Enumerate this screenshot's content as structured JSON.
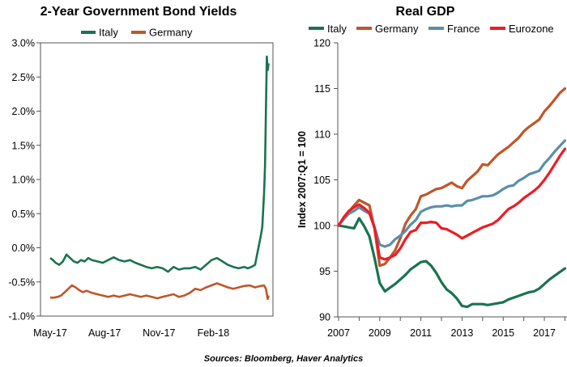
{
  "source": "Sources: Bloomberg, Haver Analytics",
  "chart_data": [
    {
      "type": "line",
      "title": "2-Year Government Bond Yields",
      "xlabel": "",
      "ylabel": "",
      "ylim": [
        -1.0,
        3.0
      ],
      "yticks": [
        "3.0%",
        "2.5%",
        "2.0%",
        "1.5%",
        "1.0%",
        "0.5%",
        "0.0%",
        "-0.5%",
        "-1.0%"
      ],
      "ytick_values": [
        3.0,
        2.5,
        2.0,
        1.5,
        1.0,
        0.5,
        0.0,
        -0.5,
        -1.0
      ],
      "xticks": [
        "May-17",
        "Aug-17",
        "Nov-17",
        "Feb-18"
      ],
      "xtick_positions": [
        0,
        3,
        6,
        9
      ],
      "xlim": [
        0,
        12.2
      ],
      "legend_position": "top-center",
      "series": [
        {
          "name": "Italy",
          "color": "#1a7350",
          "x": [
            0,
            0.15,
            0.3,
            0.5,
            0.7,
            0.9,
            1.1,
            1.3,
            1.5,
            1.7,
            1.9,
            2.1,
            2.3,
            2.6,
            2.9,
            3.2,
            3.5,
            3.8,
            4.1,
            4.4,
            4.7,
            5.0,
            5.3,
            5.6,
            5.9,
            6.2,
            6.5,
            6.8,
            7.1,
            7.4,
            7.7,
            8.0,
            8.3,
            8.6,
            8.9,
            9.2,
            9.5,
            9.8,
            10.1,
            10.4,
            10.7,
            10.9,
            11.1,
            11.3,
            11.45,
            11.6,
            11.7,
            11.8,
            11.85,
            11.9,
            11.95,
            12.0,
            12.05
          ],
          "values": [
            -0.15,
            -0.18,
            -0.22,
            -0.25,
            -0.2,
            -0.1,
            -0.15,
            -0.2,
            -0.22,
            -0.18,
            -0.2,
            -0.15,
            -0.18,
            -0.2,
            -0.22,
            -0.18,
            -0.14,
            -0.18,
            -0.2,
            -0.18,
            -0.22,
            -0.25,
            -0.28,
            -0.3,
            -0.28,
            -0.3,
            -0.35,
            -0.28,
            -0.32,
            -0.3,
            -0.3,
            -0.28,
            -0.32,
            -0.25,
            -0.18,
            -0.15,
            -0.2,
            -0.25,
            -0.28,
            -0.3,
            -0.28,
            -0.3,
            -0.28,
            -0.25,
            -0.05,
            0.15,
            0.3,
            0.8,
            1.2,
            2.0,
            2.8,
            2.6,
            2.7
          ]
        },
        {
          "name": "Germany",
          "color": "#c0562a",
          "x": [
            0,
            0.2,
            0.4,
            0.6,
            0.8,
            1.0,
            1.2,
            1.4,
            1.6,
            1.8,
            2.0,
            2.3,
            2.6,
            2.9,
            3.2,
            3.5,
            3.8,
            4.1,
            4.4,
            4.7,
            5.0,
            5.3,
            5.6,
            5.9,
            6.2,
            6.5,
            6.8,
            7.1,
            7.4,
            7.7,
            8.0,
            8.3,
            8.6,
            8.9,
            9.2,
            9.5,
            9.8,
            10.1,
            10.4,
            10.7,
            11.0,
            11.3,
            11.6,
            11.8,
            11.9,
            12.0,
            12.05
          ],
          "values": [
            -0.73,
            -0.73,
            -0.72,
            -0.7,
            -0.65,
            -0.6,
            -0.55,
            -0.58,
            -0.62,
            -0.65,
            -0.63,
            -0.66,
            -0.68,
            -0.7,
            -0.72,
            -0.7,
            -0.72,
            -0.7,
            -0.68,
            -0.7,
            -0.72,
            -0.7,
            -0.72,
            -0.74,
            -0.72,
            -0.7,
            -0.68,
            -0.72,
            -0.7,
            -0.66,
            -0.6,
            -0.62,
            -0.58,
            -0.55,
            -0.52,
            -0.55,
            -0.58,
            -0.6,
            -0.58,
            -0.56,
            -0.55,
            -0.58,
            -0.56,
            -0.55,
            -0.6,
            -0.75,
            -0.7
          ]
        }
      ]
    },
    {
      "type": "line",
      "title": "Real GDP",
      "xlabel": "",
      "ylabel": "Index 2007:Q1 = 100",
      "ylim": [
        90,
        120
      ],
      "xlim": [
        2007,
        2018.1
      ],
      "yticks": [
        "120",
        "115",
        "110",
        "105",
        "100",
        "95",
        "90"
      ],
      "ytick_values": [
        120,
        115,
        110,
        105,
        100,
        95,
        90
      ],
      "xticks": [
        "2007",
        "2009",
        "2011",
        "2013",
        "2015",
        "2017"
      ],
      "xtick_values": [
        2007,
        2009,
        2011,
        2013,
        2015,
        2017
      ],
      "legend_position": "top",
      "series": [
        {
          "name": "Italy",
          "color": "#1a7350",
          "x": [
            2007.0,
            2007.25,
            2007.5,
            2007.75,
            2008.0,
            2008.25,
            2008.5,
            2008.75,
            2009.0,
            2009.25,
            2009.5,
            2009.75,
            2010.0,
            2010.25,
            2010.5,
            2010.75,
            2011.0,
            2011.25,
            2011.5,
            2011.75,
            2012.0,
            2012.25,
            2012.5,
            2012.75,
            2013.0,
            2013.25,
            2013.5,
            2013.75,
            2014.0,
            2014.25,
            2014.5,
            2014.75,
            2015.0,
            2015.25,
            2015.5,
            2015.75,
            2016.0,
            2016.25,
            2016.5,
            2016.75,
            2017.0,
            2017.25,
            2017.5,
            2017.75,
            2018.0
          ],
          "values": [
            100.0,
            99.9,
            99.8,
            99.7,
            100.8,
            99.9,
            98.8,
            96.4,
            93.7,
            92.8,
            93.2,
            93.6,
            94.1,
            94.6,
            95.2,
            95.6,
            96.0,
            96.1,
            95.6,
            94.8,
            93.8,
            93.0,
            92.6,
            92.0,
            91.2,
            91.1,
            91.4,
            91.4,
            91.4,
            91.3,
            91.4,
            91.5,
            91.6,
            91.9,
            92.1,
            92.3,
            92.5,
            92.7,
            92.8,
            93.1,
            93.6,
            94.1,
            94.5,
            94.9,
            95.3
          ]
        },
        {
          "name": "Germany",
          "color": "#c0562a",
          "x": [
            2007.0,
            2007.25,
            2007.5,
            2007.75,
            2008.0,
            2008.25,
            2008.5,
            2008.75,
            2009.0,
            2009.25,
            2009.5,
            2009.75,
            2010.0,
            2010.25,
            2010.5,
            2010.75,
            2011.0,
            2011.25,
            2011.5,
            2011.75,
            2012.0,
            2012.25,
            2012.5,
            2012.75,
            2013.0,
            2013.25,
            2013.5,
            2013.75,
            2014.0,
            2014.25,
            2014.5,
            2014.75,
            2015.0,
            2015.25,
            2015.5,
            2015.75,
            2016.0,
            2016.25,
            2016.5,
            2016.75,
            2017.0,
            2017.25,
            2017.5,
            2017.75,
            2018.0
          ],
          "values": [
            100.0,
            100.8,
            101.5,
            102.2,
            102.8,
            102.5,
            102.2,
            99.6,
            95.6,
            95.8,
            96.5,
            97.3,
            98.6,
            100.2,
            101.1,
            101.8,
            103.2,
            103.4,
            103.7,
            104.0,
            104.1,
            104.4,
            104.7,
            104.3,
            104.1,
            104.9,
            105.4,
            105.9,
            106.7,
            106.6,
            107.2,
            107.8,
            108.2,
            108.6,
            109.1,
            109.6,
            110.3,
            110.8,
            111.2,
            111.6,
            112.5,
            113.1,
            113.8,
            114.5,
            115.0
          ]
        },
        {
          "name": "France",
          "color": "#5b8fa9",
          "x": [
            2007.0,
            2007.25,
            2007.5,
            2007.75,
            2008.0,
            2008.25,
            2008.5,
            2008.75,
            2009.0,
            2009.25,
            2009.5,
            2009.75,
            2010.0,
            2010.25,
            2010.5,
            2010.75,
            2011.0,
            2011.25,
            2011.5,
            2011.75,
            2012.0,
            2012.25,
            2012.5,
            2012.75,
            2013.0,
            2013.25,
            2013.5,
            2013.75,
            2014.0,
            2014.25,
            2014.5,
            2014.75,
            2015.0,
            2015.25,
            2015.5,
            2015.75,
            2016.0,
            2016.25,
            2016.5,
            2016.75,
            2017.0,
            2017.25,
            2017.5,
            2017.75,
            2018.0
          ],
          "values": [
            100.0,
            100.7,
            101.3,
            101.6,
            102.0,
            101.6,
            101.3,
            99.8,
            97.9,
            97.7,
            97.9,
            98.5,
            98.9,
            99.4,
            100.1,
            100.6,
            101.5,
            101.8,
            102.0,
            102.1,
            102.1,
            102.2,
            102.1,
            102.2,
            102.2,
            102.7,
            102.8,
            103.0,
            103.2,
            103.2,
            103.3,
            103.6,
            104.0,
            104.3,
            104.4,
            104.9,
            105.2,
            105.6,
            105.8,
            106.0,
            106.8,
            107.4,
            108.1,
            108.7,
            109.3
          ]
        },
        {
          "name": "Eurozone",
          "color": "#ee1c24",
          "x": [
            2007.0,
            2007.25,
            2007.5,
            2007.75,
            2008.0,
            2008.25,
            2008.5,
            2008.75,
            2009.0,
            2009.25,
            2009.5,
            2009.75,
            2010.0,
            2010.25,
            2010.5,
            2010.75,
            2011.0,
            2011.25,
            2011.5,
            2011.75,
            2012.0,
            2012.25,
            2012.5,
            2012.75,
            2013.0,
            2013.25,
            2013.5,
            2013.75,
            2014.0,
            2014.25,
            2014.5,
            2014.75,
            2015.0,
            2015.25,
            2015.5,
            2015.75,
            2016.0,
            2016.25,
            2016.5,
            2016.75,
            2017.0,
            2017.25,
            2017.5,
            2017.75,
            2018.0
          ],
          "values": [
            100.0,
            100.9,
            101.6,
            102.0,
            102.3,
            101.9,
            101.4,
            99.7,
            96.5,
            96.3,
            96.5,
            96.8,
            97.5,
            98.5,
            99.3,
            99.5,
            100.3,
            100.3,
            100.4,
            100.3,
            99.7,
            99.6,
            99.3,
            99.0,
            98.6,
            98.9,
            99.2,
            99.5,
            99.8,
            100.0,
            100.2,
            100.6,
            101.2,
            101.8,
            102.1,
            102.5,
            103.0,
            103.4,
            103.8,
            104.3,
            105.0,
            105.8,
            106.7,
            107.6,
            108.4
          ]
        }
      ]
    }
  ]
}
